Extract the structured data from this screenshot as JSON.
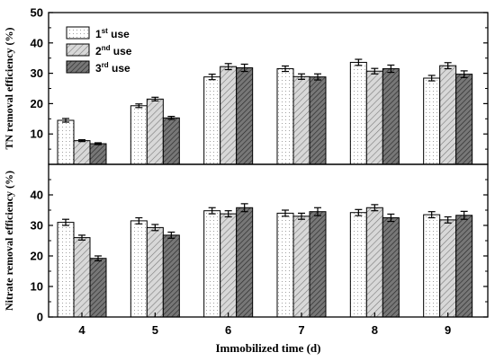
{
  "chart_data": [
    {
      "type": "bar",
      "ylabel": "TN removal efficiency (%)",
      "ylim": [
        0,
        50
      ],
      "yticks": [
        10,
        20,
        30,
        40,
        50
      ],
      "categories": [
        "4",
        "5",
        "6",
        "7",
        "8",
        "9"
      ],
      "series": [
        {
          "name": "1st use",
          "values": [
            14.5,
            19.3,
            28.8,
            31.5,
            33.6,
            28.4
          ],
          "errors": [
            0.6,
            0.6,
            0.9,
            0.9,
            1.0,
            0.9
          ]
        },
        {
          "name": "2nd use",
          "values": [
            7.8,
            21.5,
            32.2,
            28.9,
            30.7,
            32.5
          ],
          "errors": [
            0.3,
            0.6,
            1.0,
            0.9,
            0.9,
            1.0
          ]
        },
        {
          "name": "3rd use",
          "values": [
            6.8,
            15.3,
            31.8,
            28.8,
            31.5,
            29.7
          ],
          "errors": [
            0.3,
            0.5,
            1.2,
            1.0,
            1.2,
            1.1
          ]
        }
      ]
    },
    {
      "type": "bar",
      "ylabel": "Nitrate removal efficiency (%)",
      "xlabel": "Immobilized time (d)",
      "ylim": [
        0,
        50
      ],
      "yticks": [
        0,
        10,
        20,
        30,
        40
      ],
      "categories": [
        "4",
        "5",
        "6",
        "7",
        "8",
        "9"
      ],
      "series": [
        {
          "name": "1st use",
          "values": [
            31.0,
            31.5,
            34.8,
            34.0,
            34.2,
            33.5
          ],
          "errors": [
            1.0,
            1.0,
            1.0,
            1.0,
            1.0,
            1.0
          ]
        },
        {
          "name": "2nd use",
          "values": [
            26.0,
            29.3,
            33.8,
            33.0,
            35.8,
            31.8
          ],
          "errors": [
            0.8,
            1.0,
            1.0,
            1.0,
            1.0,
            1.0
          ]
        },
        {
          "name": "3rd use",
          "values": [
            19.2,
            26.8,
            35.8,
            34.5,
            32.5,
            33.3
          ],
          "errors": [
            0.8,
            1.0,
            1.3,
            1.3,
            1.2,
            1.3
          ]
        }
      ]
    }
  ],
  "legend": [
    {
      "base": "1",
      "sup": "st",
      "rest": " use"
    },
    {
      "base": "2",
      "sup": "nd",
      "rest": " use"
    },
    {
      "base": "3",
      "sup": "rd",
      "rest": " use"
    }
  ]
}
